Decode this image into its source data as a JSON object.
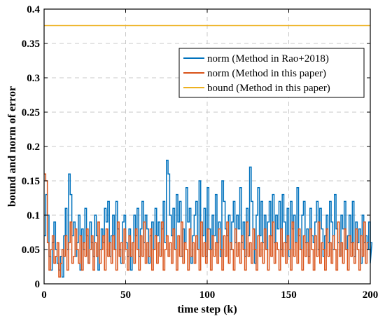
{
  "chart_data": {
    "type": "line",
    "style": "stairs",
    "xlabel": "time step (k)",
    "ylabel": "bound and norm of error",
    "xlim": [
      0,
      200
    ],
    "ylim": [
      0,
      0.4
    ],
    "xticks": [
      "0",
      "50",
      "100",
      "150",
      "200"
    ],
    "yticks": [
      "0",
      "0.05",
      "0.1",
      "0.15",
      "0.2",
      "0.25",
      "0.3",
      "0.35",
      "0.4"
    ],
    "grid": true,
    "legend_position": "top-right",
    "series": [
      {
        "name": "norm  (Method in Rao+2018)",
        "color": "#0072BD",
        "x_start": 0,
        "x_step": 1,
        "values": [
          0.07,
          0.13,
          0.1,
          0.04,
          0.02,
          0.06,
          0.09,
          0.05,
          0.03,
          0.02,
          0.04,
          0.01,
          0.07,
          0.11,
          0.05,
          0.16,
          0.13,
          0.07,
          0.09,
          0.04,
          0.06,
          0.1,
          0.02,
          0.08,
          0.05,
          0.11,
          0.07,
          0.03,
          0.09,
          0.06,
          0.04,
          0.1,
          0.07,
          0.02,
          0.05,
          0.08,
          0.06,
          0.11,
          0.09,
          0.12,
          0.04,
          0.07,
          0.1,
          0.05,
          0.12,
          0.08,
          0.05,
          0.03,
          0.09,
          0.1,
          0.06,
          0.04,
          0.08,
          0.02,
          0.06,
          0.1,
          0.07,
          0.11,
          0.04,
          0.08,
          0.12,
          0.06,
          0.1,
          0.08,
          0.03,
          0.07,
          0.09,
          0.05,
          0.11,
          0.07,
          0.09,
          0.04,
          0.08,
          0.12,
          0.06,
          0.18,
          0.16,
          0.1,
          0.07,
          0.11,
          0.05,
          0.13,
          0.09,
          0.12,
          0.04,
          0.08,
          0.06,
          0.14,
          0.09,
          0.11,
          0.03,
          0.07,
          0.1,
          0.12,
          0.05,
          0.15,
          0.09,
          0.07,
          0.11,
          0.04,
          0.14,
          0.08,
          0.05,
          0.1,
          0.07,
          0.13,
          0.06,
          0.09,
          0.04,
          0.15,
          0.12,
          0.08,
          0.07,
          0.1,
          0.05,
          0.09,
          0.12,
          0.06,
          0.1,
          0.08,
          0.14,
          0.06,
          0.09,
          0.04,
          0.11,
          0.07,
          0.17,
          0.12,
          0.08,
          0.03,
          0.1,
          0.14,
          0.07,
          0.12,
          0.06,
          0.1,
          0.05,
          0.09,
          0.12,
          0.07,
          0.13,
          0.06,
          0.1,
          0.08,
          0.12,
          0.05,
          0.13,
          0.09,
          0.06,
          0.11,
          0.04,
          0.12,
          0.08,
          0.1,
          0.06,
          0.14,
          0.07,
          0.05,
          0.1,
          0.12,
          0.06,
          0.08,
          0.04,
          0.11,
          0.07,
          0.06,
          0.09,
          0.12,
          0.05,
          0.11,
          0.08,
          0.04,
          0.07,
          0.1,
          0.06,
          0.12,
          0.09,
          0.05,
          0.13,
          0.08,
          0.06,
          0.04,
          0.1,
          0.08,
          0.12,
          0.05,
          0.07,
          0.1,
          0.06,
          0.12,
          0.04,
          0.09,
          0.06,
          0.08,
          0.03,
          0.1,
          0.06,
          0.07,
          0.05,
          0.09,
          0.03,
          0.06
        ]
      },
      {
        "name": "norm (Method in this paper)",
        "color": "#D95319",
        "x_start": 0,
        "x_step": 1,
        "values": [
          0.16,
          0.15,
          0.06,
          0.02,
          0.05,
          0.07,
          0.03,
          0.04,
          0.06,
          0.01,
          0.03,
          0.05,
          0.04,
          0.07,
          0.02,
          0.06,
          0.09,
          0.03,
          0.04,
          0.08,
          0.05,
          0.03,
          0.07,
          0.02,
          0.06,
          0.04,
          0.08,
          0.03,
          0.05,
          0.07,
          0.02,
          0.06,
          0.04,
          0.09,
          0.03,
          0.05,
          0.07,
          0.02,
          0.08,
          0.04,
          0.06,
          0.03,
          0.07,
          0.05,
          0.02,
          0.09,
          0.04,
          0.06,
          0.03,
          0.08,
          0.05,
          0.02,
          0.07,
          0.04,
          0.06,
          0.03,
          0.08,
          0.05,
          0.02,
          0.07,
          0.04,
          0.09,
          0.03,
          0.06,
          0.04,
          0.08,
          0.02,
          0.05,
          0.07,
          0.03,
          0.06,
          0.04,
          0.09,
          0.02,
          0.05,
          0.07,
          0.04,
          0.06,
          0.03,
          0.08,
          0.05,
          0.02,
          0.07,
          0.04,
          0.09,
          0.03,
          0.06,
          0.05,
          0.02,
          0.08,
          0.04,
          0.06,
          0.03,
          0.07,
          0.05,
          0.02,
          0.09,
          0.04,
          0.06,
          0.03,
          0.08,
          0.05,
          0.02,
          0.07,
          0.04,
          0.06,
          0.03,
          0.08,
          0.05,
          0.02,
          0.07,
          0.04,
          0.09,
          0.03,
          0.06,
          0.05,
          0.02,
          0.08,
          0.04,
          0.06,
          0.03,
          0.07,
          0.05,
          0.02,
          0.09,
          0.04,
          0.06,
          0.03,
          0.08,
          0.05,
          0.02,
          0.07,
          0.04,
          0.06,
          0.03,
          0.08,
          0.05,
          0.02,
          0.07,
          0.04,
          0.09,
          0.03,
          0.06,
          0.05,
          0.02,
          0.08,
          0.04,
          0.06,
          0.03,
          0.07,
          0.05,
          0.02,
          0.09,
          0.04,
          0.06,
          0.03,
          0.08,
          0.05,
          0.02,
          0.07,
          0.04,
          0.06,
          0.03,
          0.08,
          0.05,
          0.02,
          0.07,
          0.04,
          0.09,
          0.03,
          0.06,
          0.05,
          0.02,
          0.08,
          0.04,
          0.06,
          0.03,
          0.07,
          0.05,
          0.02,
          0.09,
          0.04,
          0.06,
          0.03,
          0.08,
          0.05,
          0.02,
          0.07,
          0.04,
          0.06,
          0.03,
          0.08,
          0.05,
          0.02,
          0.07,
          0.04,
          0.09,
          0.03,
          0.06
        ]
      },
      {
        "name": "bound (Method in this paper)",
        "color": "#EDB120",
        "x": [
          0,
          200
        ],
        "values": [
          0.376,
          0.376
        ]
      }
    ]
  }
}
